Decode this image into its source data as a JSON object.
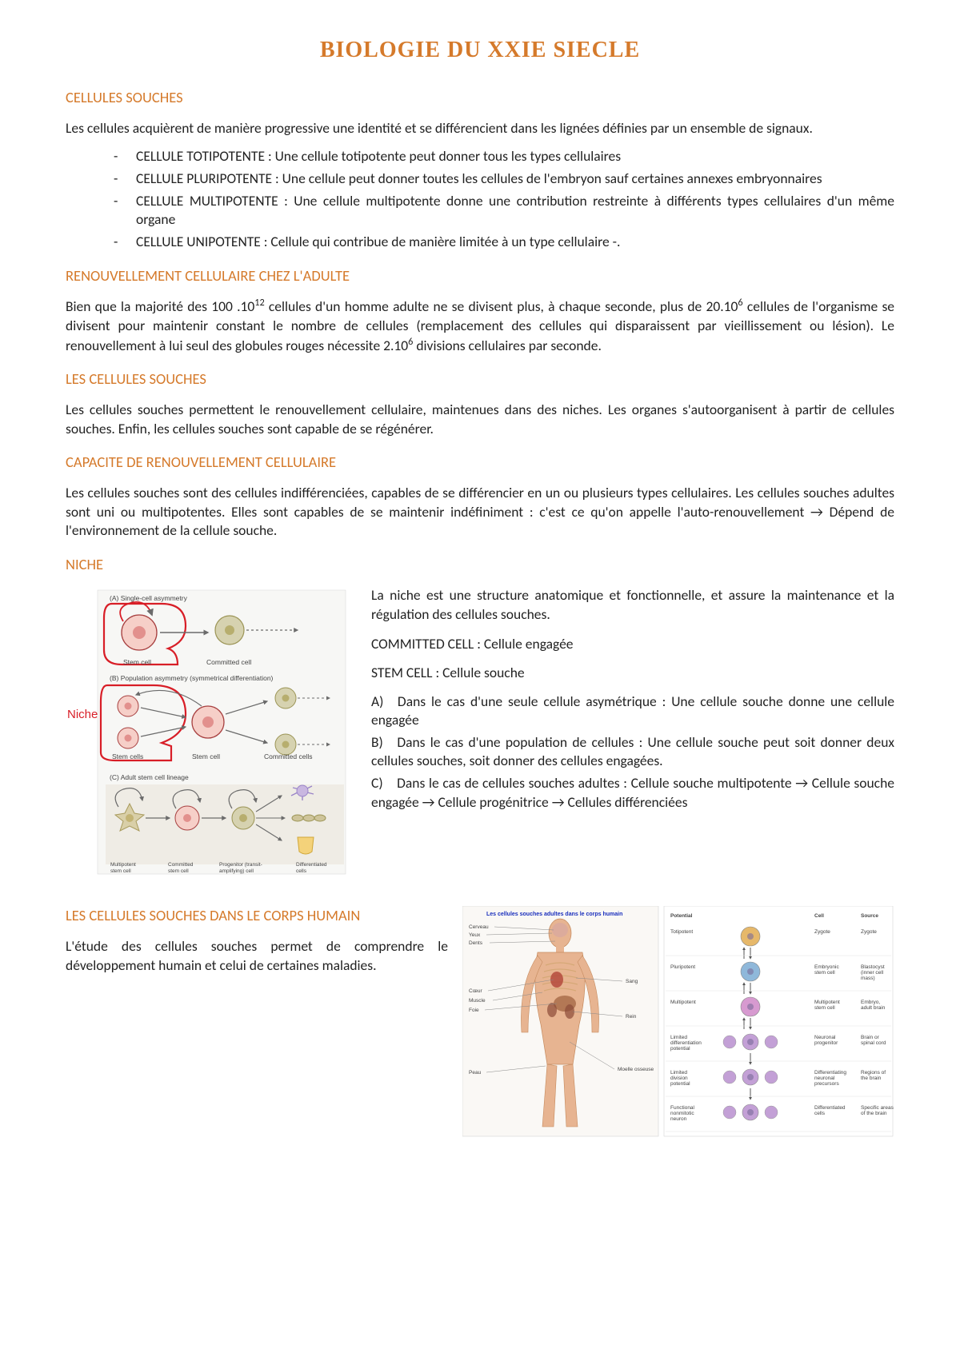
{
  "colors": {
    "accent_orange": "#d57a2b",
    "niche_red": "#d81e27",
    "body_text": "#222222",
    "figure_border": "#bdbdbd",
    "figure_bg": "#f7f7f5",
    "arrow": "#6b6b6b",
    "skin": "#e7b491",
    "bone": "#cfa46d",
    "organ": "#b44a3c",
    "blue_header": "#1a2fbd"
  },
  "title": "BIOLOGIE DU XXIE SIECLE",
  "sections": {
    "s1": {
      "heading": "CELLULES SOUCHES",
      "intro": "Les cellules acquièrent de manière progressive une identité et se différencient dans les lignées définies par un ensemble de signaux.",
      "defs": [
        "CELLULE TOTIPOTENTE : Une cellule totipotente peut donner tous les types cellulaires",
        "CELLULE PLURIPOTENTE : Une cellule peut donner toutes les cellules de l'embryon sauf certaines annexes embryonnaires",
        "CELLULE MULTIPOTENTE : Une cellule multipotente donne une contribution restreinte à différents types cellulaires d'un même organe",
        "CELLULE UNIPOTENTE : Cellule qui contribue de manière limitée à un type cellulaire -."
      ]
    },
    "s2": {
      "heading": "RENOUVELLEMENT CELLULAIRE CHEZ L'ADULTE",
      "body_pre": "Bien que la majorité des 100 .10",
      "exp1": "12",
      "body_mid1": " cellules d'un homme adulte ne se divisent plus, à chaque seconde, plus de 20.10",
      "exp2": "6",
      "body_mid2": " cellules de l'organisme se divisent pour maintenir constant le nombre de cellules (remplacement des cellules qui disparaissent par vieillissement ou lésion). Le renouvellement à lui seul des globules rouges nécessite 2.10",
      "exp3": "6",
      "body_end": " divisions cellulaires par seconde."
    },
    "s3": {
      "heading": "LES CELLULES SOUCHES",
      "body": "Les cellules souches permettent le renouvellement cellulaire, maintenues dans des niches. Les organes s'autoorganisent à partir de cellules souches. Enfin, les cellules souches sont capable de se régénérer."
    },
    "s4": {
      "heading": "CAPACITE DE RENOUVELLEMENT CELLULAIRE",
      "body": "Les cellules souches sont des cellules indifférenciées, capables de se différencier en un ou plusieurs types cellulaires. Les cellules souches adultes sont uni ou multipotentes. Elles sont capables de se maintenir indéfiniment : c'est ce qu'on appelle l'auto-renouvellement → Dépend de l'environnement de la cellule souche."
    },
    "s5": {
      "heading": "NICHE",
      "figure": {
        "niche_label": "Niche",
        "panelA": "(A)  Single-cell asymmetry",
        "panelB": "(B)  Population asymmetry (symmetrical differentiation)",
        "panelC": "(C)  Adult stem cell lineage",
        "stem_cell": "Stem cell",
        "stem_cells": "Stem cells",
        "committed_cell": "Committed cell",
        "committed_cells": "Committed cells",
        "multipotent": "Multipotent\nstem cell",
        "committed_stem": "Committed\nstem cell",
        "progenitor": "Progenitor (transit-\namplifying) cell",
        "differentiated": "Differentiated\ncells",
        "circle_fill": "#f6cfc8",
        "circle_stroke": "#a73f3f",
        "nucleus_fill": "#e2908d",
        "committed_fill": "#d6d2b0",
        "committed_stroke": "#9b9455",
        "neuron_fill": "#c9b7e0",
        "adipose_fill": "#f4d27a",
        "niche_outline": "#d81e27"
      },
      "right": {
        "p1": "La niche est une structure anatomique et fonctionnelle, et assure la maintenance et la régulation des cellules souches.",
        "term1": "COMMITTED CELL : Cellule engagée",
        "term2": "STEM CELL : Cellule souche",
        "a": "A) Dans le cas d'une seule cellule asymétrique : Une cellule souche donne une cellule engagée",
        "b": "B) Dans le cas d'une population de cellules : Une cellule souche peut soit donner deux cellules souches, soit donner des cellules engagées.",
        "c": "C) Dans le cas de cellules souches adultes : Cellule souche multipotente → Cellule souche engagée → Cellule progénitrice → Cellules différenciées"
      }
    },
    "s6": {
      "heading": "LES CELLULES SOUCHES DANS LE CORPS HUMAIN",
      "body": "L'étude des cellules souches permet de comprendre le développement humain et celui de certaines maladies.",
      "figure": {
        "body_title": "Les cellules souches adultes dans le corps humain",
        "labels_left": [
          "Cerveau",
          "Yeux",
          "Dents",
          "Cœur",
          "Muscle",
          "Foie",
          "Peau"
        ],
        "labels_right": [
          "Sang",
          "Rein",
          "Moelle osseuse"
        ],
        "potential_header": "Potential",
        "cell_header": "Cell",
        "source_header": "Source",
        "rows": [
          {
            "pot": "Totipotent",
            "cell": "Zygote",
            "src": "Zygote"
          },
          {
            "pot": "Pluripotent",
            "cell": "Embryonic\nstem cell",
            "src": "Blastocyst\n(inner cell\nmass)"
          },
          {
            "pot": "Multipotent",
            "cell": "Multipotent\nstem cell",
            "src": "Embryo,\nadult brain"
          },
          {
            "pot": "Limited\ndifferentiation\npotential",
            "cell": "Neuronal\nprogenitor",
            "src": "Brain or\nspinal cord"
          },
          {
            "pot": "Limited\ndivision\npotential",
            "cell": "Differentiating\nneuronal\nprecursors",
            "src": "Regions of\nthe brain"
          },
          {
            "pot": "Functional\nnonmitotic\nneuron",
            "cell": "Differentiated\ncells",
            "src": "Specific areas\nof the brain"
          }
        ]
      }
    }
  }
}
